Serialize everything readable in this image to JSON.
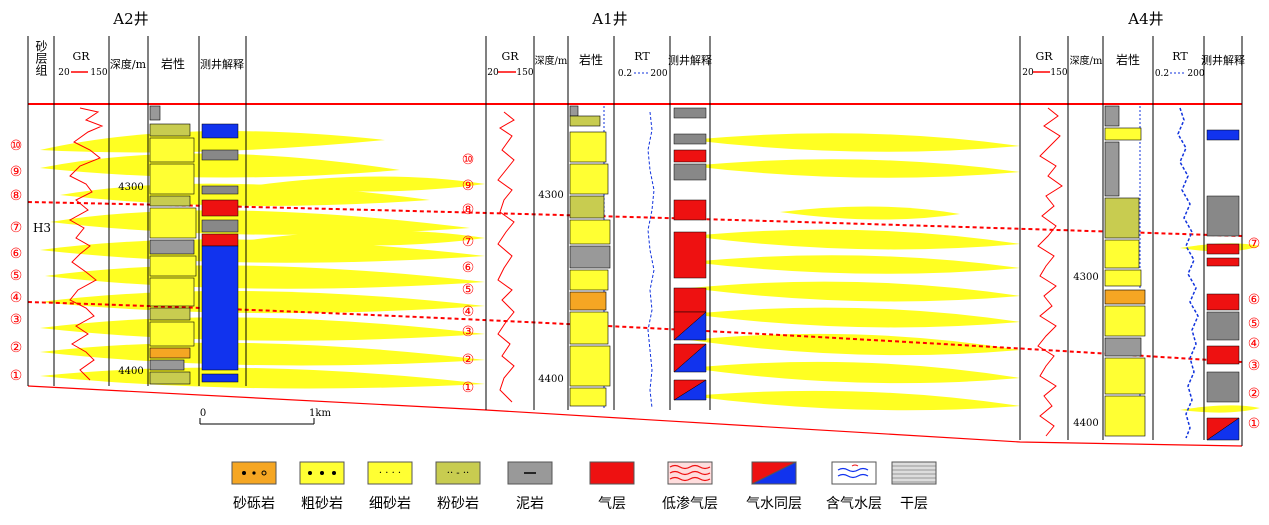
{
  "wells": [
    {
      "name": "A2井",
      "headers": [
        "砂层组",
        "GR",
        "20",
        "150",
        "深度/m",
        "岩性",
        "测井解释"
      ],
      "zone": "H3",
      "depth_ticks": [
        "4300",
        "4400"
      ],
      "layers": [
        "⑩",
        "⑨",
        "⑧",
        "⑦",
        "⑥",
        "⑤",
        "④",
        "③",
        "②",
        "①"
      ]
    },
    {
      "name": "A1井",
      "headers": [
        "GR",
        "20",
        "150",
        "深度/m",
        "岩性",
        "RT",
        "0.2",
        "200",
        "测井解释"
      ],
      "depth_ticks": [
        "4300",
        "4400"
      ],
      "layers": [
        "⑩",
        "⑨",
        "⑧",
        "⑦",
        "⑥",
        "⑤",
        "④",
        "③",
        "②",
        "①"
      ]
    },
    {
      "name": "A4井",
      "headers": [
        "GR",
        "20",
        "150",
        "深度/m",
        "岩性",
        "RT",
        "0.2",
        "200",
        "测井解释"
      ],
      "depth_ticks": [
        "4300",
        "4400"
      ],
      "layers": [
        "⑦",
        "⑥",
        "⑤",
        "④",
        "③",
        "②",
        "①"
      ]
    }
  ],
  "scale": {
    "start": "0",
    "end": "1km"
  },
  "legend": [
    {
      "label": "砂砾岩",
      "color": "#f5a623"
    },
    {
      "label": "粗砂岩",
      "color": "#ffff33"
    },
    {
      "label": "细砂岩",
      "color": "#ffff33"
    },
    {
      "label": "粉砂岩",
      "color": "#c8cc50"
    },
    {
      "label": "泥岩",
      "color": "#999999"
    },
    {
      "label": "气层",
      "color": "#ee1111"
    },
    {
      "label": "低渗气层",
      "color": "#ee1111"
    },
    {
      "label": "气水同层",
      "color": "#ee1111"
    },
    {
      "label": "含气水层",
      "color": "#1133ee"
    },
    {
      "label": "干层",
      "color": "#888888"
    }
  ],
  "colors": {
    "sand": "#ffff22",
    "gr_curve": "#ff0000",
    "rt_curve": "#1133dd",
    "marker": "#ff0000",
    "gas": "#ee1111",
    "water": "#1133ee"
  }
}
